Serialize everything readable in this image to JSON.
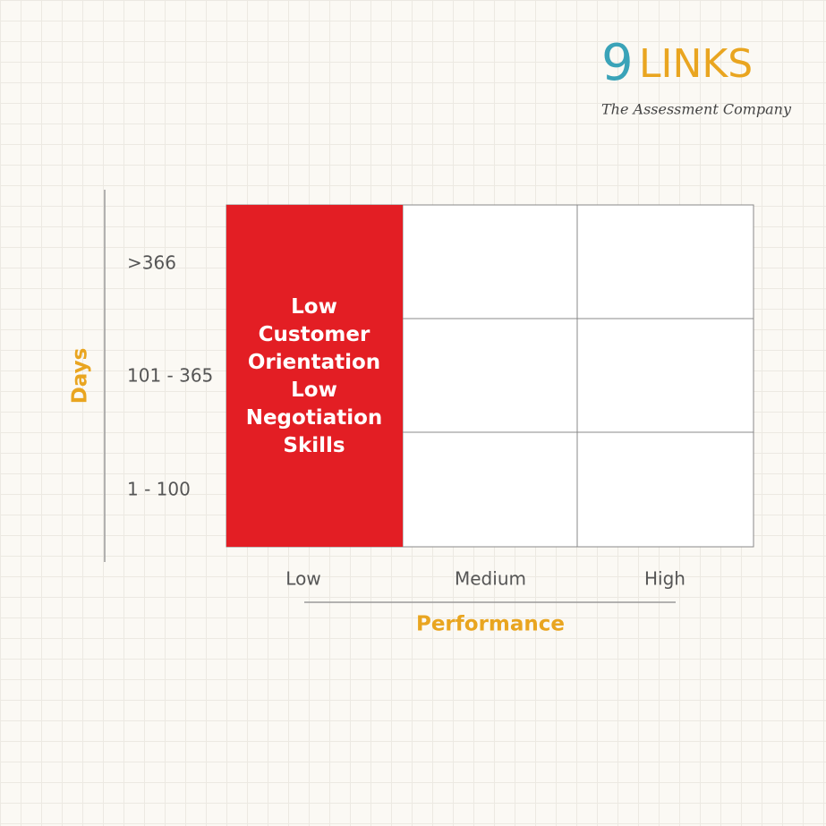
{
  "logo": {
    "mark": "9",
    "name": "LINKS",
    "tagline": "The Assessment Company"
  },
  "y_axis": {
    "title": "Days",
    "labels": [
      ">366",
      "101 - 365",
      "1 - 100"
    ]
  },
  "x_axis": {
    "title": "Performance",
    "labels": [
      "Low",
      "Medium",
      "High"
    ]
  },
  "highlight": {
    "lines": [
      "Low",
      "Customer",
      "Orientation",
      "Low",
      "Negotiation",
      "Skills"
    ]
  }
}
